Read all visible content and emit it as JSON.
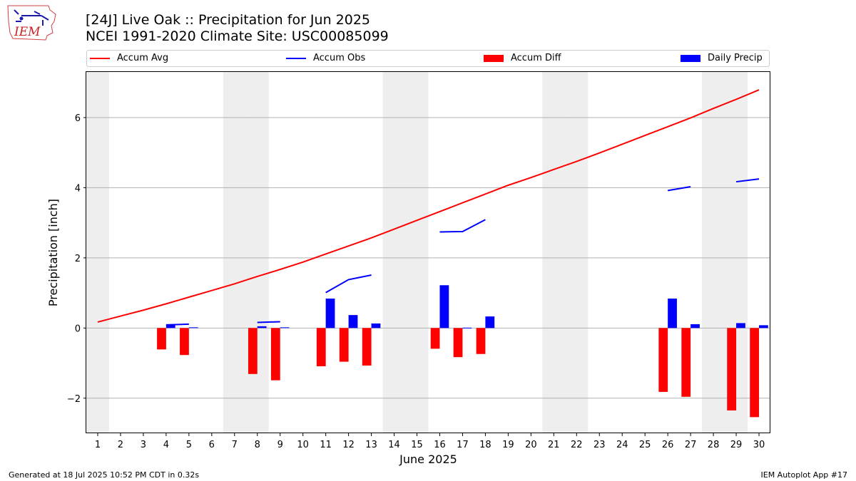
{
  "header": {
    "title_line1": "[24J] Live Oak :: Precipitation for Jun 2025",
    "title_line2": "NCEI 1991-2020 Climate Site: USC00085099"
  },
  "logo": {
    "text": "IEM"
  },
  "footer": {
    "left": "Generated at 18 Jul 2025 10:52 PM CDT in 0.32s",
    "right": "IEM Autoplot App #17"
  },
  "colors": {
    "accum_avg": "#ff0000",
    "accum_obs": "#0000ff",
    "accum_diff": "#ff0000",
    "daily_precip": "#0000ff",
    "weekend_shade": "#eeeeee",
    "grid": "#b0b0b0"
  },
  "legend": {
    "items": [
      "Accum Avg",
      "Accum Obs",
      "Accum Diff",
      "Daily Precip"
    ],
    "placement": "top"
  },
  "chart_data": {
    "type": "bar",
    "xlabel": "June 2025",
    "ylabel": "Precipitation [inch]",
    "ylim": [
      -3.0,
      7.3
    ],
    "xlim": [
      0.5,
      30.5
    ],
    "yticks": [
      -2,
      0,
      2,
      4,
      6
    ],
    "xticks": [
      1,
      2,
      3,
      4,
      5,
      6,
      7,
      8,
      9,
      10,
      11,
      12,
      13,
      14,
      15,
      16,
      17,
      18,
      19,
      20,
      21,
      22,
      23,
      24,
      25,
      26,
      27,
      28,
      29,
      30
    ],
    "grid": "y",
    "weekend_days": [
      1,
      7,
      8,
      14,
      15,
      21,
      22,
      28,
      29
    ],
    "accum_avg": [
      [
        1,
        0.17
      ],
      [
        2,
        0.34
      ],
      [
        3,
        0.51
      ],
      [
        4,
        0.69
      ],
      [
        5,
        0.88
      ],
      [
        6,
        1.07
      ],
      [
        7,
        1.26
      ],
      [
        8,
        1.47
      ],
      [
        9,
        1.67
      ],
      [
        10,
        1.88
      ],
      [
        11,
        2.11
      ],
      [
        12,
        2.34
      ],
      [
        13,
        2.57
      ],
      [
        14,
        2.82
      ],
      [
        15,
        3.07
      ],
      [
        16,
        3.32
      ],
      [
        17,
        3.57
      ],
      [
        18,
        3.82
      ],
      [
        19,
        4.07
      ],
      [
        20,
        4.29
      ],
      [
        21,
        4.52
      ],
      [
        22,
        4.75
      ],
      [
        23,
        4.99
      ],
      [
        24,
        5.24
      ],
      [
        25,
        5.49
      ],
      [
        26,
        5.74
      ],
      [
        27,
        5.99
      ],
      [
        28,
        6.26
      ],
      [
        29,
        6.52
      ],
      [
        30,
        6.79
      ]
    ],
    "accum_obs_segments": [
      [
        [
          4,
          0.09
        ],
        [
          5,
          0.11
        ]
      ],
      [
        [
          8,
          0.16
        ],
        [
          9,
          0.18
        ]
      ],
      [
        [
          11,
          1.01
        ],
        [
          12,
          1.38
        ],
        [
          13,
          1.51
        ]
      ],
      [
        [
          16,
          2.74
        ],
        [
          17,
          2.75
        ],
        [
          18,
          3.09
        ]
      ],
      [
        [
          26,
          3.92
        ],
        [
          27,
          4.03
        ]
      ],
      [
        [
          29,
          4.17
        ],
        [
          30,
          4.25
        ]
      ]
    ],
    "accum_diff": [
      [
        4,
        -0.61
      ],
      [
        5,
        -0.77
      ],
      [
        8,
        -1.31
      ],
      [
        9,
        -1.49
      ],
      [
        11,
        -1.09
      ],
      [
        12,
        -0.96
      ],
      [
        13,
        -1.07
      ],
      [
        16,
        -0.59
      ],
      [
        17,
        -0.83
      ],
      [
        18,
        -0.74
      ],
      [
        26,
        -1.82
      ],
      [
        27,
        -1.96
      ],
      [
        29,
        -2.35
      ],
      [
        30,
        -2.54
      ]
    ],
    "daily_precip": [
      [
        4,
        0.09
      ],
      [
        5,
        0.02
      ],
      [
        8,
        0.05
      ],
      [
        9,
        0.02
      ],
      [
        11,
        0.84
      ],
      [
        12,
        0.37
      ],
      [
        13,
        0.13
      ],
      [
        16,
        1.22
      ],
      [
        17,
        0.01
      ],
      [
        18,
        0.33
      ],
      [
        26,
        0.84
      ],
      [
        27,
        0.11
      ],
      [
        29,
        0.14
      ],
      [
        30,
        0.08
      ]
    ]
  }
}
